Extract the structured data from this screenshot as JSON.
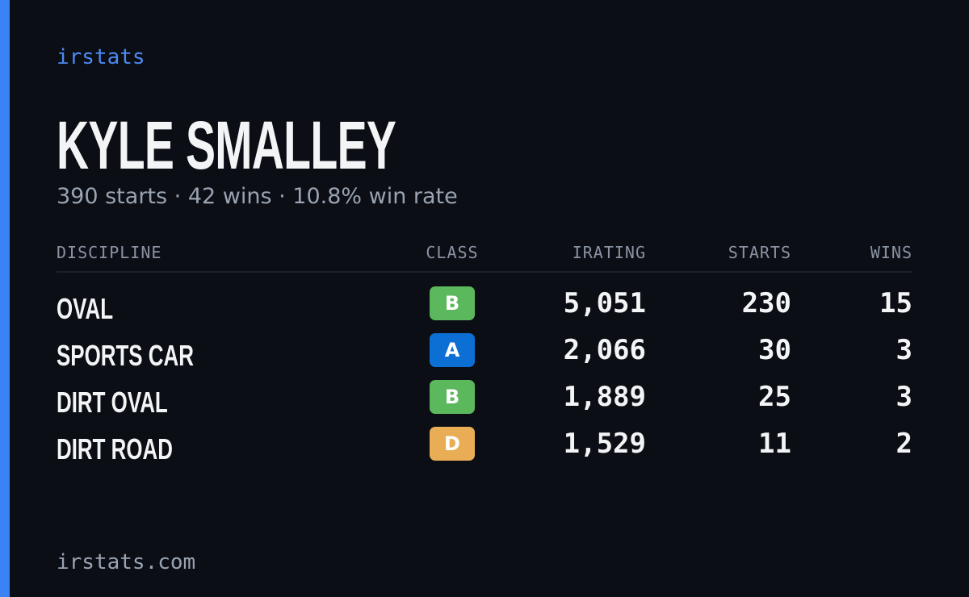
{
  "brand": "irstats",
  "player": {
    "name": "KYLE SMALLEY",
    "summary": "390 starts · 42 wins · 10.8% win rate"
  },
  "table": {
    "columns": [
      "DISCIPLINE",
      "CLASS",
      "IRATING",
      "STARTS",
      "WINS"
    ],
    "rows": [
      {
        "discipline": "OVAL",
        "class": "B",
        "class_color": "#5cb85c",
        "irating": "5,051",
        "starts": "230",
        "wins": "15"
      },
      {
        "discipline": "SPORTS CAR",
        "class": "A",
        "class_color": "#0b6fd4",
        "irating": "2,066",
        "starts": "30",
        "wins": "3"
      },
      {
        "discipline": "DIRT OVAL",
        "class": "B",
        "class_color": "#5cb85c",
        "irating": "1,889",
        "starts": "25",
        "wins": "3"
      },
      {
        "discipline": "DIRT ROAD",
        "class": "D",
        "class_color": "#e9ad55",
        "irating": "1,529",
        "starts": "11",
        "wins": "2"
      }
    ]
  },
  "footer": "irstats.com"
}
